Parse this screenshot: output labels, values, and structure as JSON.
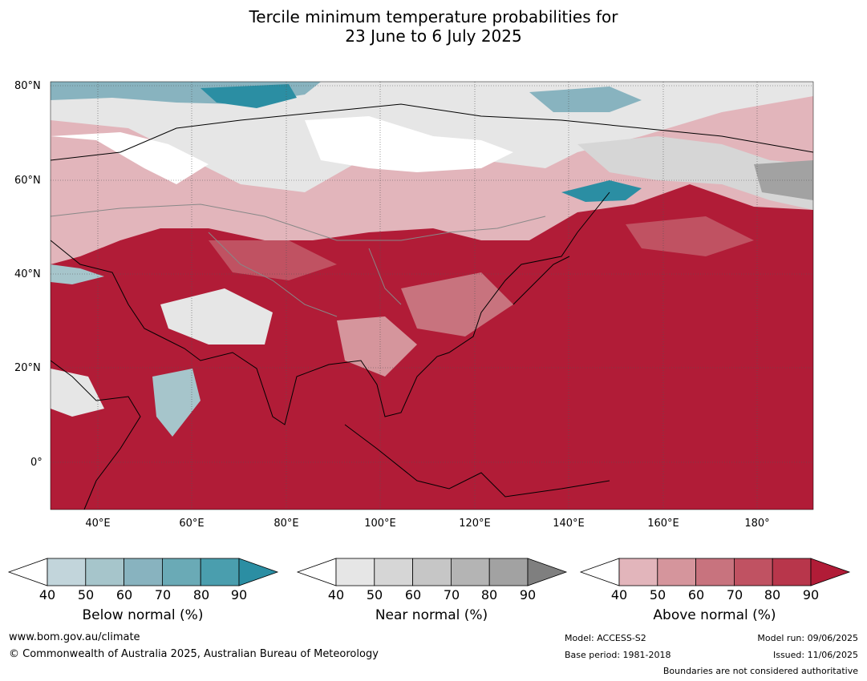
{
  "title_line1": "Tercile minimum temperature probabilities for",
  "title_line2": "23 June to 6 July 2025",
  "lat_labels": [
    "80°N",
    "60°N",
    "40°N",
    "20°N",
    "0°"
  ],
  "lon_labels": [
    "40°E",
    "60°E",
    "80°E",
    "100°E",
    "120°E",
    "140°E",
    "160°E",
    "180°"
  ],
  "legends": [
    {
      "label": "Below normal (%)",
      "ticks": [
        "40",
        "50",
        "60",
        "70",
        "80",
        "90"
      ],
      "colors": [
        "#ffffff",
        "#c2d5db",
        "#a6c5cb",
        "#88b3bf",
        "#6aaab6",
        "#4a9eae",
        "#2b8ea3"
      ]
    },
    {
      "label": "Near normal (%)",
      "ticks": [
        "40",
        "50",
        "60",
        "70",
        "80",
        "90"
      ],
      "colors": [
        "#ffffff",
        "#e6e6e6",
        "#d6d6d6",
        "#c6c6c6",
        "#b4b4b4",
        "#a2a2a2",
        "#7f7f7f"
      ]
    },
    {
      "label": "Above normal (%)",
      "ticks": [
        "40",
        "50",
        "60",
        "70",
        "80",
        "90"
      ],
      "colors": [
        "#ffffff",
        "#e2b5bb",
        "#d5959c",
        "#c8737e",
        "#c05262",
        "#b8364b",
        "#b11c37"
      ]
    }
  ],
  "footer": {
    "url": "www.bom.gov.au/climate",
    "copyright": "© Commonwealth of Australia 2025, Australian Bureau of Meteorology",
    "model": "Model: ACCESS-S2",
    "base_period": "Base period: 1981-2018",
    "model_run": "Model run: 09/06/2025",
    "issued": "Issued: 11/06/2025",
    "disclaimer": "Boundaries are not considered authoritative"
  }
}
